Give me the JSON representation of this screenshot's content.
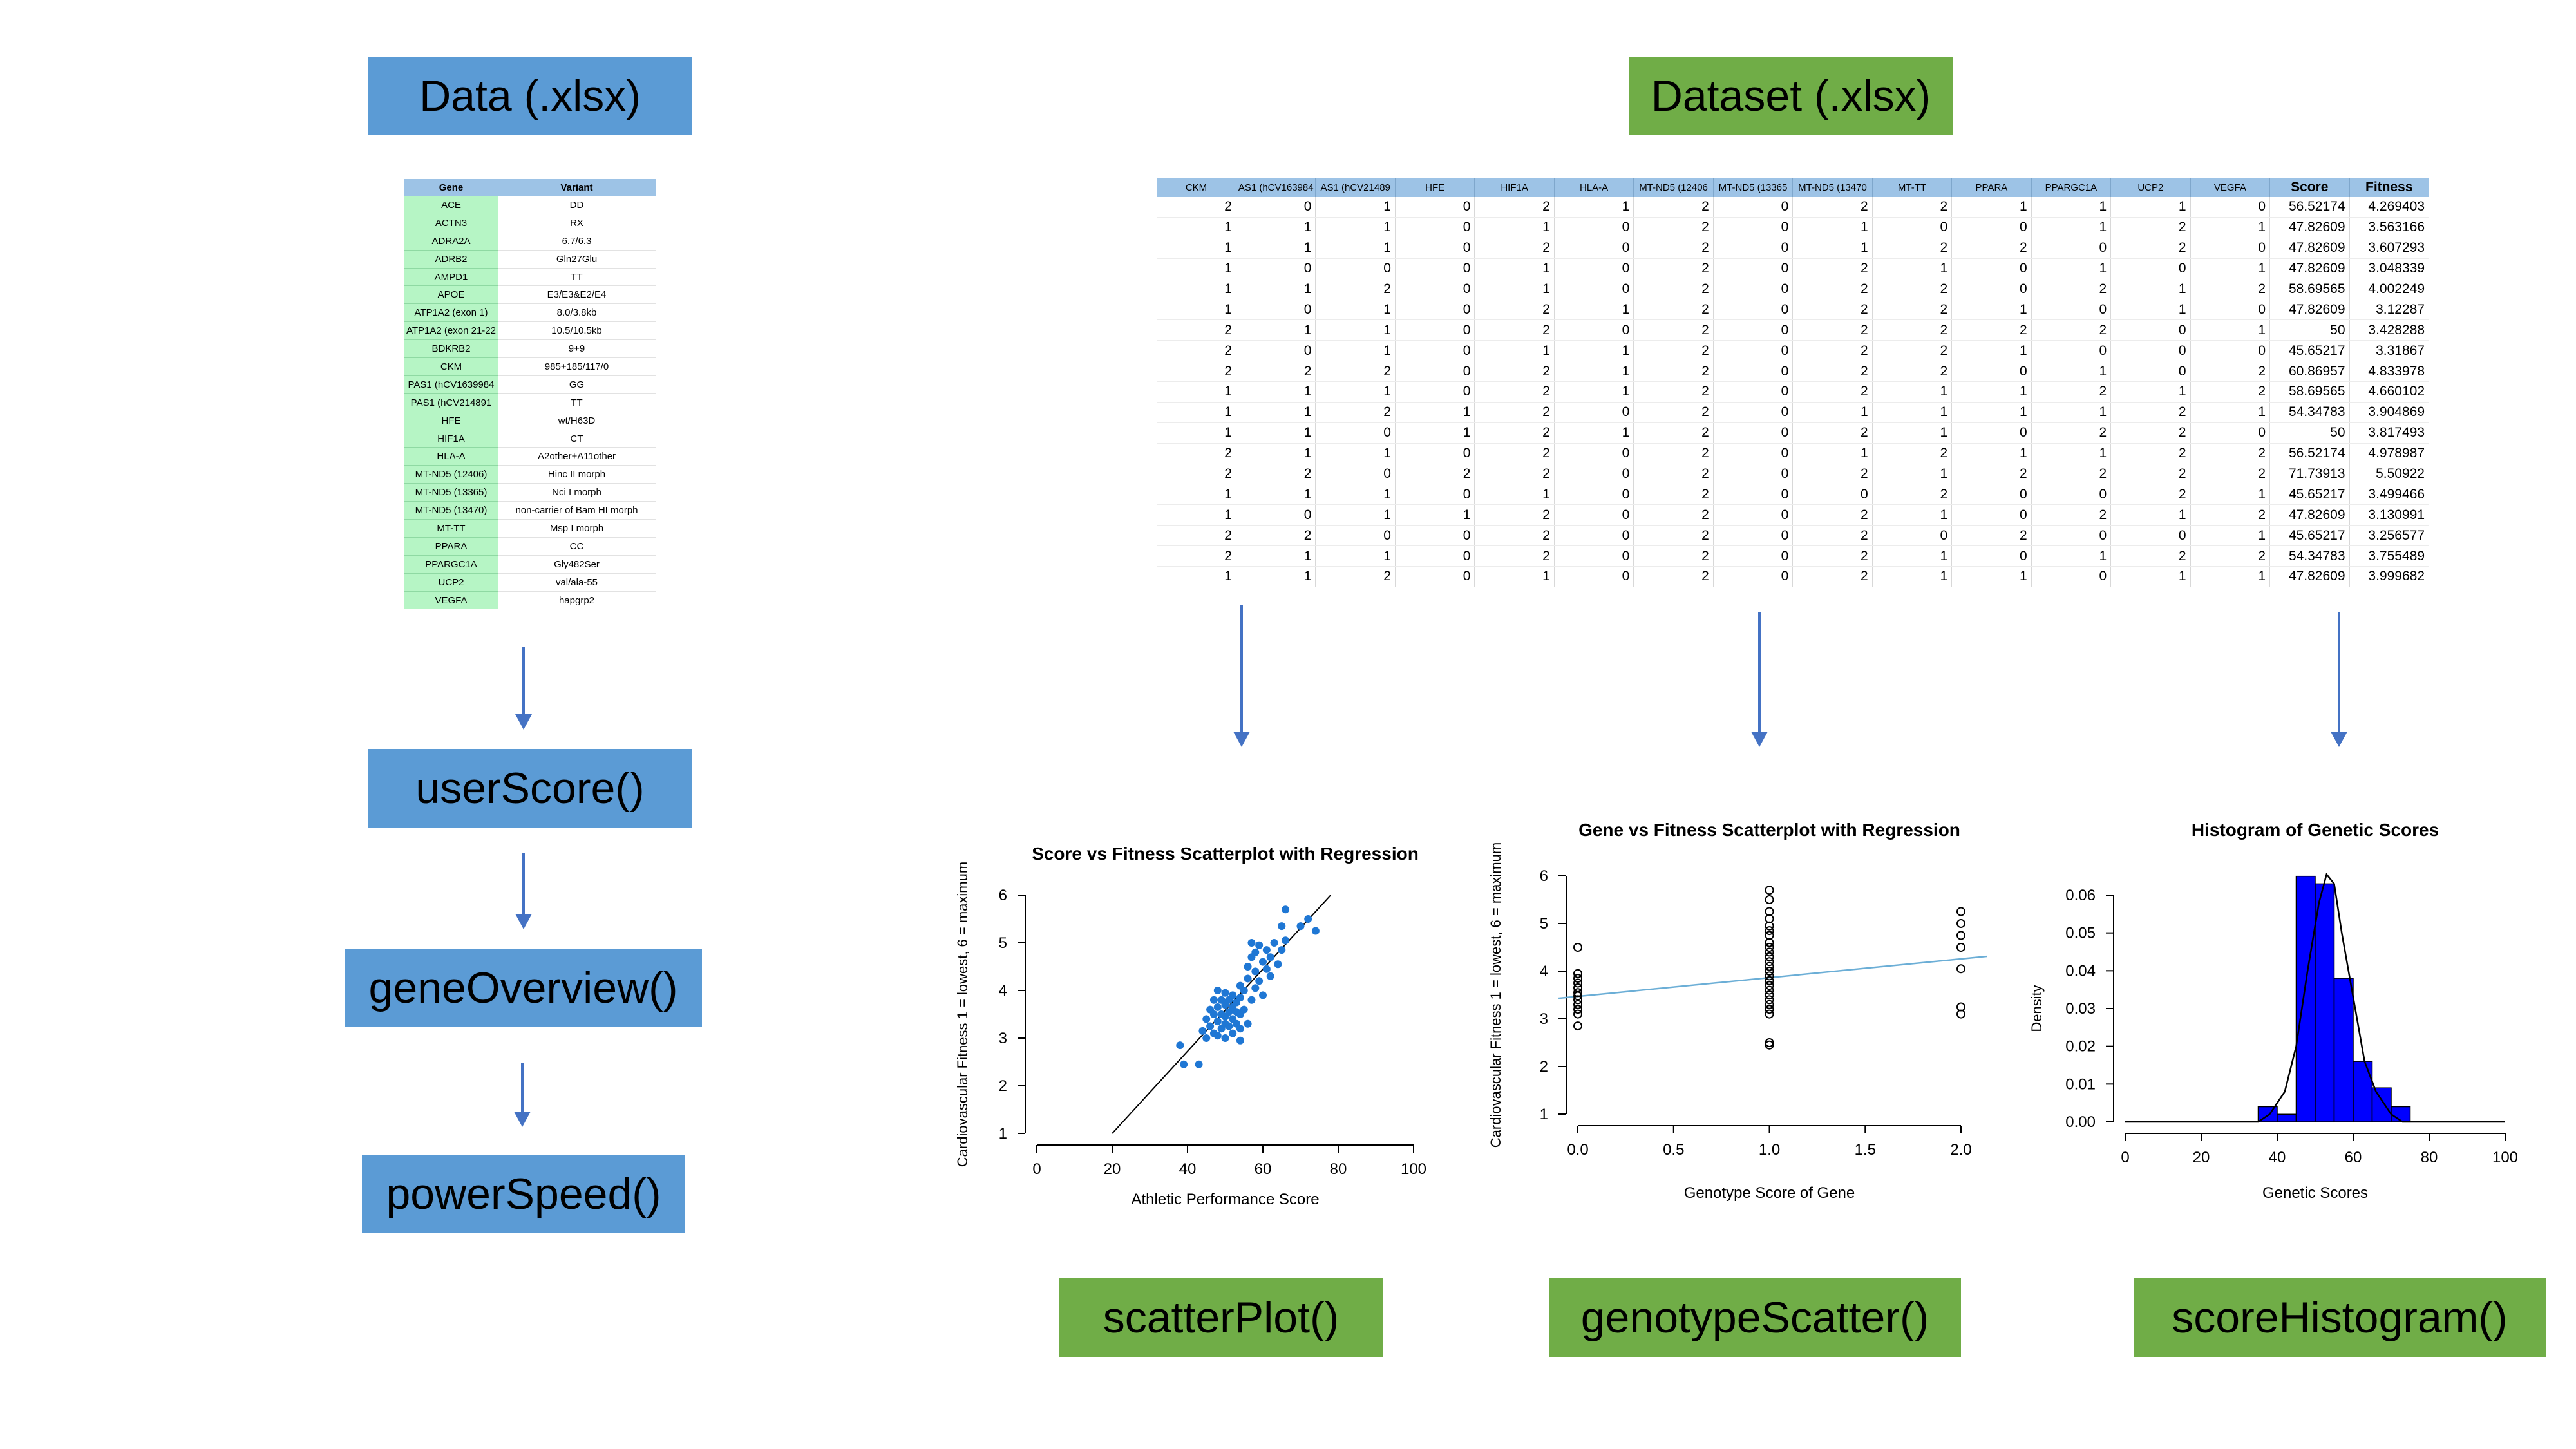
{
  "functions": {
    "data_label": "Data (.xlsx)",
    "dataset_label": "Dataset (.xlsx)",
    "user_score": "userScore()",
    "gene_overview": "geneOverview()",
    "power_speed": "powerSpeed()",
    "scatter_plot": "scatterPlot()",
    "genotype_scatter": "genotypeScatter()",
    "score_histogram": "scoreHistogram()"
  },
  "colors": {
    "blue_box": "#5b9bd5",
    "green_box": "#70ad47",
    "arrow": "#4472c4",
    "scatter_point": "#1f77d4",
    "histogram_bar": "#0000ff"
  },
  "gene_table": {
    "headers": [
      "Gene",
      "Variant"
    ],
    "rows": [
      [
        "ACE",
        "DD"
      ],
      [
        "ACTN3",
        "RX"
      ],
      [
        "ADRA2A",
        "6.7/6.3"
      ],
      [
        "ADRB2",
        "Gln27Glu"
      ],
      [
        "AMPD1",
        "TT"
      ],
      [
        "APOE",
        "E3/E3&E2/E4"
      ],
      [
        "ATP1A2 (exon 1)",
        "8.0/3.8kb"
      ],
      [
        "ATP1A2 (exon 21-22",
        "10.5/10.5kb"
      ],
      [
        "BDKRB2",
        "9+9"
      ],
      [
        "CKM",
        "985+185/117/0"
      ],
      [
        "PAS1 (hCV1639984",
        "GG"
      ],
      [
        "PAS1 (hCV214891",
        "TT"
      ],
      [
        "HFE",
        "wt/H63D"
      ],
      [
        "HIF1A",
        "CT"
      ],
      [
        "HLA-A",
        "A2other+A11other"
      ],
      [
        "MT-ND5 (12406)",
        "Hinc II morph"
      ],
      [
        "MT-ND5 (13365)",
        "Nci I morph"
      ],
      [
        "MT-ND5 (13470)",
        "non-carrier of Bam HI morph"
      ],
      [
        "MT-TT",
        "Msp I morph"
      ],
      [
        "PPARA",
        "CC"
      ],
      [
        "PPARGC1A",
        "Gly482Ser"
      ],
      [
        "UCP2",
        "val/ala-55"
      ],
      [
        "VEGFA",
        "hapgrp2"
      ]
    ]
  },
  "dataset_table": {
    "headers": [
      "CKM",
      "AS1 (hCV163984",
      "AS1 (hCV21489",
      "HFE",
      "HIF1A",
      "HLA-A",
      "MT-ND5 (12406",
      "MT-ND5 (13365",
      "MT-ND5 (13470",
      "MT-TT",
      "PPARA",
      "PPARGC1A",
      "UCP2",
      "VEGFA",
      "Score",
      "Fitness"
    ],
    "rows": [
      [
        "2",
        "0",
        "1",
        "0",
        "2",
        "1",
        "2",
        "0",
        "2",
        "2",
        "1",
        "1",
        "1",
        "0",
        "56.52174",
        "4.269403"
      ],
      [
        "1",
        "1",
        "1",
        "0",
        "1",
        "0",
        "2",
        "0",
        "1",
        "0",
        "0",
        "1",
        "2",
        "1",
        "47.82609",
        "3.563166"
      ],
      [
        "1",
        "1",
        "1",
        "0",
        "2",
        "0",
        "2",
        "0",
        "1",
        "2",
        "2",
        "0",
        "2",
        "0",
        "47.82609",
        "3.607293"
      ],
      [
        "1",
        "0",
        "0",
        "0",
        "1",
        "0",
        "2",
        "0",
        "2",
        "1",
        "0",
        "1",
        "0",
        "1",
        "47.82609",
        "3.048339"
      ],
      [
        "1",
        "1",
        "2",
        "0",
        "1",
        "0",
        "2",
        "0",
        "2",
        "2",
        "0",
        "2",
        "1",
        "2",
        "58.69565",
        "4.002249"
      ],
      [
        "1",
        "0",
        "1",
        "0",
        "2",
        "1",
        "2",
        "0",
        "2",
        "2",
        "1",
        "0",
        "1",
        "0",
        "47.82609",
        "3.12287"
      ],
      [
        "2",
        "1",
        "1",
        "0",
        "2",
        "0",
        "2",
        "0",
        "2",
        "2",
        "2",
        "2",
        "0",
        "1",
        "50",
        "3.428288"
      ],
      [
        "2",
        "0",
        "1",
        "0",
        "1",
        "1",
        "2",
        "0",
        "2",
        "2",
        "1",
        "0",
        "0",
        "0",
        "45.65217",
        "3.31867"
      ],
      [
        "2",
        "2",
        "2",
        "0",
        "2",
        "1",
        "2",
        "0",
        "2",
        "2",
        "0",
        "1",
        "0",
        "2",
        "60.86957",
        "4.833978"
      ],
      [
        "1",
        "1",
        "1",
        "0",
        "2",
        "1",
        "2",
        "0",
        "2",
        "1",
        "1",
        "2",
        "1",
        "2",
        "58.69565",
        "4.660102"
      ],
      [
        "1",
        "1",
        "2",
        "1",
        "2",
        "0",
        "2",
        "0",
        "1",
        "1",
        "1",
        "1",
        "2",
        "1",
        "54.34783",
        "3.904869"
      ],
      [
        "1",
        "1",
        "0",
        "1",
        "2",
        "1",
        "2",
        "0",
        "2",
        "1",
        "0",
        "2",
        "2",
        "0",
        "50",
        "3.817493"
      ],
      [
        "2",
        "1",
        "1",
        "0",
        "2",
        "0",
        "2",
        "0",
        "1",
        "2",
        "1",
        "1",
        "2",
        "2",
        "56.52174",
        "4.978987"
      ],
      [
        "2",
        "2",
        "0",
        "2",
        "2",
        "0",
        "2",
        "0",
        "2",
        "1",
        "2",
        "2",
        "2",
        "2",
        "71.73913",
        "5.50922"
      ],
      [
        "1",
        "1",
        "1",
        "0",
        "1",
        "0",
        "2",
        "0",
        "0",
        "2",
        "0",
        "0",
        "2",
        "1",
        "45.65217",
        "3.499466"
      ],
      [
        "1",
        "0",
        "1",
        "1",
        "2",
        "0",
        "2",
        "0",
        "2",
        "1",
        "0",
        "2",
        "1",
        "2",
        "47.82609",
        "3.130991"
      ],
      [
        "2",
        "2",
        "0",
        "0",
        "2",
        "0",
        "2",
        "0",
        "2",
        "0",
        "2",
        "0",
        "0",
        "1",
        "45.65217",
        "3.256577"
      ],
      [
        "2",
        "1",
        "1",
        "0",
        "2",
        "0",
        "2",
        "0",
        "2",
        "1",
        "0",
        "1",
        "2",
        "2",
        "54.34783",
        "3.755489"
      ],
      [
        "1",
        "1",
        "2",
        "0",
        "1",
        "0",
        "2",
        "0",
        "2",
        "1",
        "1",
        "0",
        "1",
        "1",
        "47.82609",
        "3.999682"
      ]
    ]
  },
  "chart_data": [
    {
      "type": "scatter",
      "title": "Score vs Fitness Scatterplot with Regression",
      "xlabel": "Athletic Performance Score",
      "ylabel": "Cardiovascular Fitness 1 = lowest, 6 = maximum",
      "xlim": [
        0,
        100
      ],
      "ylim": [
        1,
        6
      ],
      "xticks": [
        "0",
        "20",
        "40",
        "60",
        "80",
        "100"
      ],
      "yticks": [
        "1",
        "2",
        "3",
        "4",
        "5",
        "6"
      ],
      "regression_line": [
        [
          20,
          1
        ],
        [
          78,
          6
        ]
      ],
      "points": [
        [
          38,
          2.85
        ],
        [
          39,
          2.45
        ],
        [
          43,
          2.45
        ],
        [
          44,
          3.15
        ],
        [
          45,
          3.4
        ],
        [
          45,
          3.0
        ],
        [
          46,
          3.25
        ],
        [
          46,
          3.6
        ],
        [
          47,
          3.1
        ],
        [
          47,
          3.5
        ],
        [
          47,
          3.8
        ],
        [
          48,
          3.35
        ],
        [
          48,
          3.05
        ],
        [
          48,
          3.65
        ],
        [
          48,
          4.0
        ],
        [
          49,
          3.2
        ],
        [
          49,
          3.5
        ],
        [
          49,
          3.8
        ],
        [
          50,
          3.0
        ],
        [
          50,
          3.3
        ],
        [
          50,
          3.45
        ],
        [
          50,
          3.7
        ],
        [
          50,
          3.95
        ],
        [
          51,
          3.25
        ],
        [
          51,
          3.55
        ],
        [
          51,
          3.8
        ],
        [
          52,
          3.1
        ],
        [
          52,
          3.4
        ],
        [
          52,
          3.65
        ],
        [
          52,
          3.9
        ],
        [
          53,
          3.3
        ],
        [
          53,
          3.55
        ],
        [
          53,
          3.75
        ],
        [
          54,
          2.95
        ],
        [
          54,
          3.2
        ],
        [
          54,
          3.5
        ],
        [
          54,
          3.85
        ],
        [
          54,
          4.1
        ],
        [
          55,
          3.6
        ],
        [
          55,
          4.0
        ],
        [
          56,
          3.3
        ],
        [
          56,
          4.25
        ],
        [
          56,
          4.5
        ],
        [
          57,
          3.8
        ],
        [
          57,
          4.7
        ],
        [
          57,
          5.0
        ],
        [
          58,
          4.05
        ],
        [
          58,
          4.4
        ],
        [
          58,
          4.8
        ],
        [
          59,
          4.2
        ],
        [
          59,
          4.95
        ],
        [
          60,
          4.6
        ],
        [
          60,
          3.9
        ],
        [
          61,
          4.45
        ],
        [
          61,
          4.85
        ],
        [
          62,
          4.3
        ],
        [
          62,
          4.7
        ],
        [
          63,
          5.0
        ],
        [
          64,
          4.55
        ],
        [
          65,
          5.35
        ],
        [
          65,
          4.85
        ],
        [
          66,
          5.05
        ],
        [
          66,
          5.7
        ],
        [
          70,
          5.35
        ],
        [
          72,
          5.5
        ],
        [
          74,
          5.25
        ]
      ]
    },
    {
      "type": "scatter",
      "title": "Gene vs Fitness Scatterplot with Regression",
      "xlabel": "Genotype Score of Gene",
      "ylabel": "Cardiovascular Fitness 1 = lowest, 6 = maximum",
      "xlim": [
        0,
        2
      ],
      "ylim": [
        1,
        6
      ],
      "xticks": [
        "0.0",
        "0.5",
        "1.0",
        "1.5",
        "2.0"
      ],
      "yticks": [
        "1",
        "2",
        "3",
        "4",
        "5",
        "6"
      ],
      "regression_line": [
        [
          0,
          3.45
        ],
        [
          2,
          4.28
        ]
      ],
      "points": [
        [
          0,
          4.5
        ],
        [
          0,
          3.95
        ],
        [
          0,
          3.85
        ],
        [
          0,
          3.75
        ],
        [
          0,
          3.65
        ],
        [
          0,
          3.55
        ],
        [
          0,
          3.48
        ],
        [
          0,
          3.4
        ],
        [
          0,
          3.3
        ],
        [
          0,
          3.2
        ],
        [
          0,
          3.1
        ],
        [
          0,
          2.85
        ],
        [
          1,
          5.7
        ],
        [
          1,
          5.5
        ],
        [
          1,
          5.25
        ],
        [
          1,
          5.1
        ],
        [
          1,
          4.95
        ],
        [
          1,
          4.85
        ],
        [
          1,
          4.75
        ],
        [
          1,
          4.6
        ],
        [
          1,
          4.5
        ],
        [
          1,
          4.4
        ],
        [
          1,
          4.3
        ],
        [
          1,
          4.2
        ],
        [
          1,
          4.1
        ],
        [
          1,
          4.0
        ],
        [
          1,
          3.9
        ],
        [
          1,
          3.8
        ],
        [
          1,
          3.7
        ],
        [
          1,
          3.6
        ],
        [
          1,
          3.5
        ],
        [
          1,
          3.4
        ],
        [
          1,
          3.3
        ],
        [
          1,
          3.2
        ],
        [
          1,
          3.1
        ],
        [
          1,
          2.5
        ],
        [
          1,
          2.45
        ],
        [
          2,
          5.25
        ],
        [
          2,
          5.0
        ],
        [
          2,
          4.75
        ],
        [
          2,
          4.5
        ],
        [
          2,
          4.05
        ],
        [
          2,
          3.25
        ],
        [
          2,
          3.1
        ]
      ]
    },
    {
      "type": "histogram",
      "title": "Histogram of Genetic Scores",
      "xlabel": "Genetic Scores",
      "ylabel": "Density",
      "xlim": [
        0,
        100
      ],
      "ylim": [
        0,
        0.06
      ],
      "xticks": [
        "0",
        "20",
        "40",
        "60",
        "80",
        "100"
      ],
      "yticks": [
        "0.00",
        "0.01",
        "0.02",
        "0.03",
        "0.04",
        "0.05",
        "0.06"
      ],
      "bins": [
        {
          "from": 35,
          "to": 40,
          "density": 0.004
        },
        {
          "from": 40,
          "to": 45,
          "density": 0.002
        },
        {
          "from": 45,
          "to": 50,
          "density": 0.065
        },
        {
          "from": 50,
          "to": 55,
          "density": 0.063
        },
        {
          "from": 55,
          "to": 60,
          "density": 0.038
        },
        {
          "from": 60,
          "to": 65,
          "density": 0.016
        },
        {
          "from": 65,
          "to": 70,
          "density": 0.009
        },
        {
          "from": 70,
          "to": 75,
          "density": 0.004
        }
      ],
      "density_curve": [
        [
          0,
          0
        ],
        [
          35,
          0
        ],
        [
          38,
          0.002
        ],
        [
          42,
          0.008
        ],
        [
          45,
          0.02
        ],
        [
          48,
          0.04
        ],
        [
          51,
          0.058
        ],
        [
          53,
          0.0655
        ],
        [
          55,
          0.063
        ],
        [
          57,
          0.05
        ],
        [
          60,
          0.033
        ],
        [
          63,
          0.016
        ],
        [
          66,
          0.008
        ],
        [
          70,
          0.002
        ],
        [
          73,
          0
        ],
        [
          100,
          0
        ]
      ]
    }
  ]
}
